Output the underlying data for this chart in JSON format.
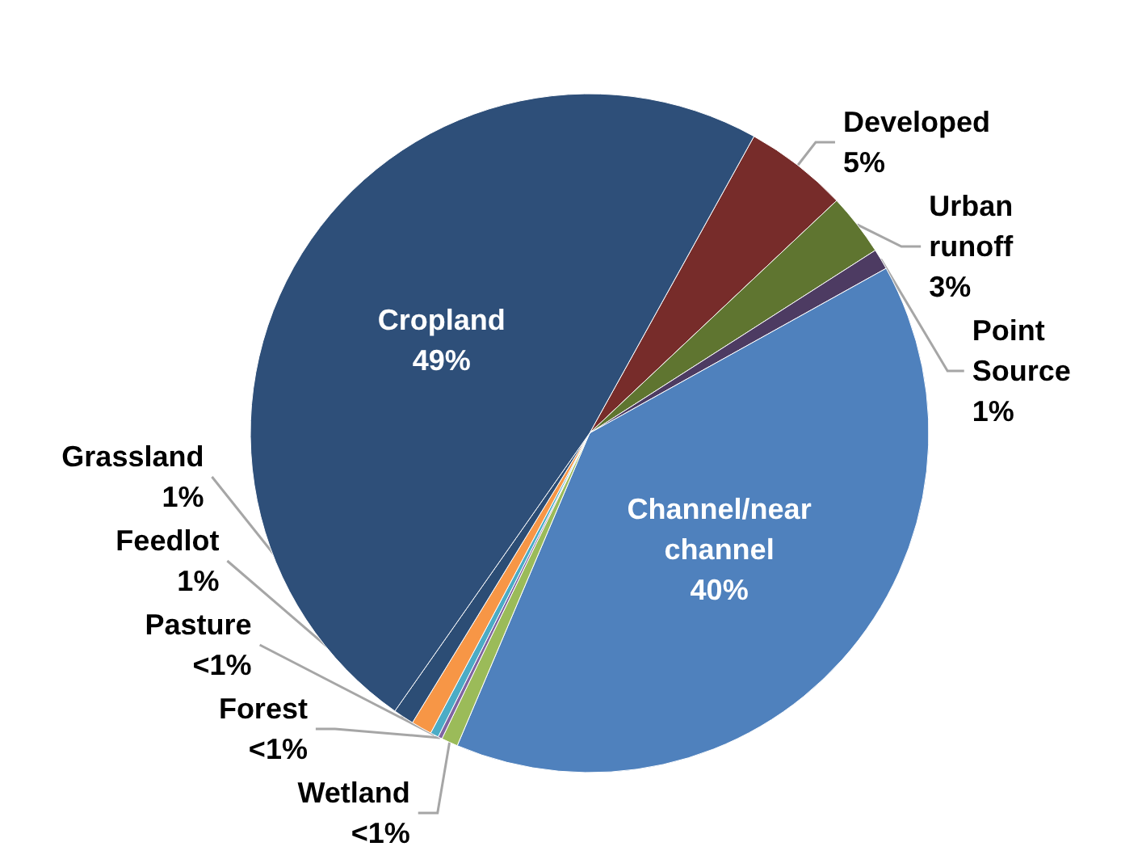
{
  "chart_data": {
    "type": "pie",
    "categories": [
      "Developed",
      "Urban runoff",
      "Point Source",
      "Channel/near channel",
      "Wetland",
      "Forest",
      "Pasture",
      "Feedlot",
      "Grassland",
      "Cropland"
    ],
    "values": [
      5,
      3,
      1,
      40,
      0.8,
      0.2,
      0.4,
      1,
      1,
      49
    ],
    "value_labels": [
      "5%",
      "3%",
      "1%",
      "40%",
      "<1%",
      "<1%",
      "<1%",
      "1%",
      "1%",
      "49%"
    ],
    "colors": [
      "#772c2a",
      "#5f7530",
      "#4d3b62",
      "#4f81bd",
      "#9bbb59",
      "#8064a2",
      "#4bacc6",
      "#f79646",
      "#2c4d75",
      "#2e4f79"
    ],
    "legend": false
  }
}
